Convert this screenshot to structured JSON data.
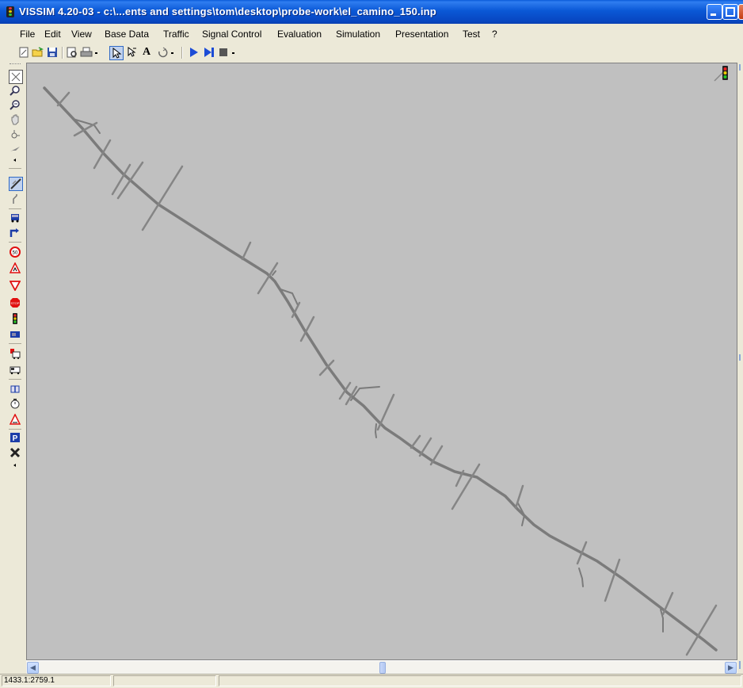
{
  "window": {
    "title": "VISSIM 4.20-03 - c:\\...ents and settings\\tom\\desktop\\probe-work\\el_camino_150.inp"
  },
  "menu": [
    "File",
    "Edit",
    "View",
    "Base Data",
    "Traffic",
    "Signal Control",
    "Evaluation",
    "Simulation",
    "Presentation",
    "Test",
    "?"
  ],
  "toolbar": {
    "icons": [
      "new-icon",
      "open-icon",
      "save-icon",
      "print-preview-icon",
      "print-icon",
      "select-icon",
      "rotate-select-icon",
      "text-icon",
      "undo-icon",
      "play-icon",
      "step-icon",
      "stop-icon"
    ]
  },
  "left_toolbar": {
    "icons": [
      "zoom-all-icon",
      "zoom-in-icon",
      "zoom-out-icon",
      "pan-icon",
      "rotate-icon",
      "plane-icon",
      "links-icon",
      "connectors-icon",
      "vehicle-inputs-icon",
      "routes-icon",
      "speed-limit-icon",
      "reduced-speed-icon",
      "yield-icon",
      "stop-sign-icon",
      "signal-head-icon",
      "detector-icon",
      "transit-stop-icon",
      "transit-line-icon",
      "node-icon",
      "travel-time-icon",
      "queue-counter-icon",
      "parking-icon",
      "close-icon"
    ],
    "speed_label": "50",
    "stop_label": "STOP",
    "parking_label": "P"
  },
  "colors": {
    "canvas": "#c0c0c0",
    "road": "#7b7b7b",
    "titlebar": "#0a58d6"
  },
  "status": {
    "coordinates": "1433.1:2759.1"
  }
}
